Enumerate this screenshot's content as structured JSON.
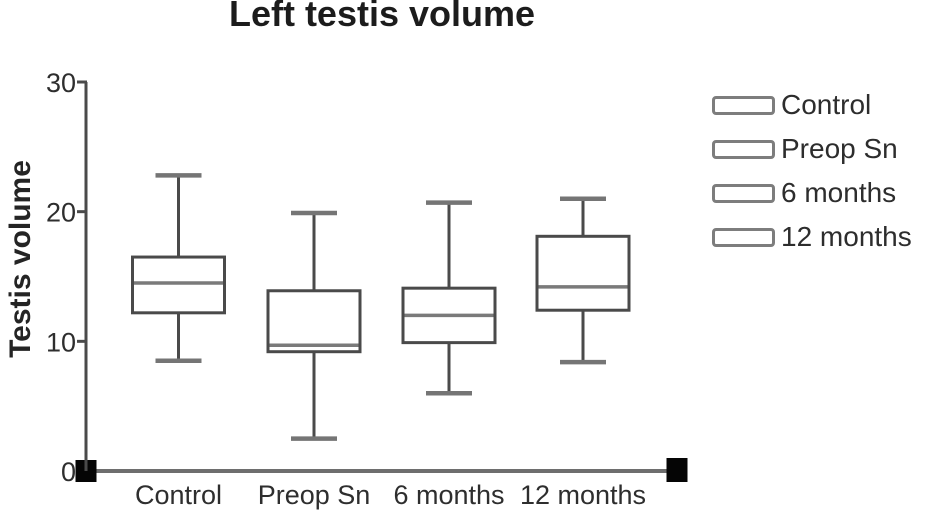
{
  "title": "Left testis volume",
  "y_axis": {
    "label": "Testis volume",
    "tick_labels": [
      "0",
      "10",
      "20",
      "30"
    ],
    "min": 0,
    "max": 30
  },
  "x_axis": {
    "categories": [
      "Control",
      "Preop Sn",
      "6 months",
      "12 months"
    ]
  },
  "legend": {
    "position": "right",
    "items": [
      {
        "label": "Control"
      },
      {
        "label": "Preop Sn"
      },
      {
        "label": "6 months"
      },
      {
        "label": "12 months"
      }
    ]
  },
  "chart_data": {
    "type": "box",
    "title": "Left testis volume",
    "ylabel": "Testis volume",
    "ylim": [
      0,
      30
    ],
    "yticks": [
      0,
      10,
      20,
      30
    ],
    "grid": false,
    "legend_position": "right",
    "categories": [
      "Control",
      "Preop Sn",
      "6 months",
      "12 months"
    ],
    "series": [
      {
        "name": "Control",
        "whisker_low": 8.5,
        "q1": 12.2,
        "median": 14.5,
        "q3": 16.5,
        "whisker_high": 22.8
      },
      {
        "name": "Preop Sn",
        "whisker_low": 2.5,
        "q1": 9.2,
        "median": 9.7,
        "q3": 13.9,
        "whisker_high": 19.9
      },
      {
        "name": "6 months",
        "whisker_low": 6.0,
        "q1": 9.9,
        "median": 12.0,
        "q3": 14.1,
        "whisker_high": 20.7
      },
      {
        "name": "12 months",
        "whisker_low": 8.4,
        "q1": 12.4,
        "median": 14.2,
        "q3": 18.1,
        "whisker_high": 21.0
      }
    ]
  },
  "colors": {
    "background": "#ffffff",
    "text": "#2e2e2e",
    "title_text": "#1c1c1c",
    "axis_line": "#4a4a4a",
    "x_axis_line": "#6e6e6e",
    "box_stroke": "#4a4a4a",
    "box_fill": "#ffffff",
    "median_line": "#7a7a7a",
    "whisker_cap": "#757575",
    "legend_swatch_border": "#7d7d7d",
    "axis_end_marker": "#050505"
  }
}
